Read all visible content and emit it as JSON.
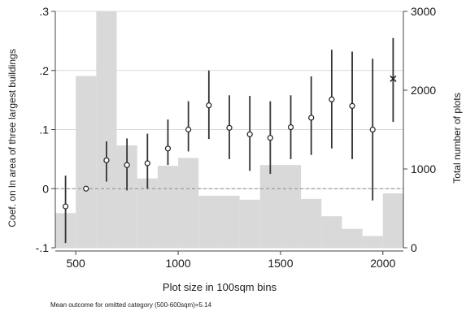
{
  "chart_data": {
    "type": "bar",
    "title": "",
    "xlabel": "Plot size in 100sqm bins",
    "ylabel_left": "Coef. on ln area of three largest buildings",
    "ylabel_right": "Total number of plots",
    "note": "Mean outcome for omitted category (500-600sqm)=5.14",
    "xlim": [
      400,
      2100
    ],
    "ylim_left": [
      -0.1,
      0.3
    ],
    "ylim_right": [
      0,
      3000
    ],
    "x_ticks": [
      500,
      1000,
      1500,
      2000
    ],
    "y_left_ticks": [
      -0.1,
      0,
      0.1,
      0.2,
      0.3
    ],
    "y_left_tick_labels": [
      "-.1",
      "0",
      ".1",
      ".2",
      ".3"
    ],
    "y_right_ticks": [
      0,
      1000,
      2000,
      3000
    ],
    "grid": true,
    "reference_line": 0,
    "histogram": {
      "name": "Total number of plots",
      "color": "#d9d9d9",
      "bin_width": 100,
      "bin_starts": [
        400,
        500,
        600,
        700,
        800,
        900,
        1000,
        1100,
        1200,
        1300,
        1400,
        1500,
        1600,
        1700,
        1800,
        1900,
        2000
      ],
      "counts": [
        440,
        2180,
        3200,
        1300,
        880,
        1040,
        1140,
        660,
        660,
        610,
        1050,
        1050,
        620,
        400,
        240,
        150,
        690
      ]
    },
    "coefficients": {
      "name": "Coefficient",
      "x": [
        450,
        550,
        650,
        750,
        850,
        950,
        1050,
        1150,
        1250,
        1350,
        1450,
        1550,
        1650,
        1750,
        1850,
        1950,
        2050
      ],
      "estimate": [
        -0.03,
        0.0,
        0.048,
        0.04,
        0.043,
        0.068,
        0.1,
        0.141,
        0.103,
        0.092,
        0.086,
        0.104,
        0.12,
        0.151,
        0.14,
        0.1,
        0.186
      ],
      "ci_low": [
        -0.092,
        null,
        0.012,
        -0.003,
        0.0,
        0.04,
        0.063,
        0.084,
        0.05,
        0.03,
        0.025,
        0.05,
        0.057,
        0.068,
        0.05,
        -0.02,
        0.113
      ],
      "ci_high": [
        0.022,
        null,
        0.08,
        0.085,
        0.093,
        0.117,
        0.148,
        0.2,
        0.158,
        0.157,
        0.148,
        0.158,
        0.19,
        0.235,
        0.232,
        0.22,
        0.255
      ],
      "markers": [
        "circle",
        "circle",
        "circle",
        "circle",
        "circle",
        "circle",
        "circle",
        "circle",
        "circle",
        "circle",
        "circle",
        "circle",
        "circle",
        "circle",
        "circle",
        "circle",
        "x"
      ]
    }
  }
}
